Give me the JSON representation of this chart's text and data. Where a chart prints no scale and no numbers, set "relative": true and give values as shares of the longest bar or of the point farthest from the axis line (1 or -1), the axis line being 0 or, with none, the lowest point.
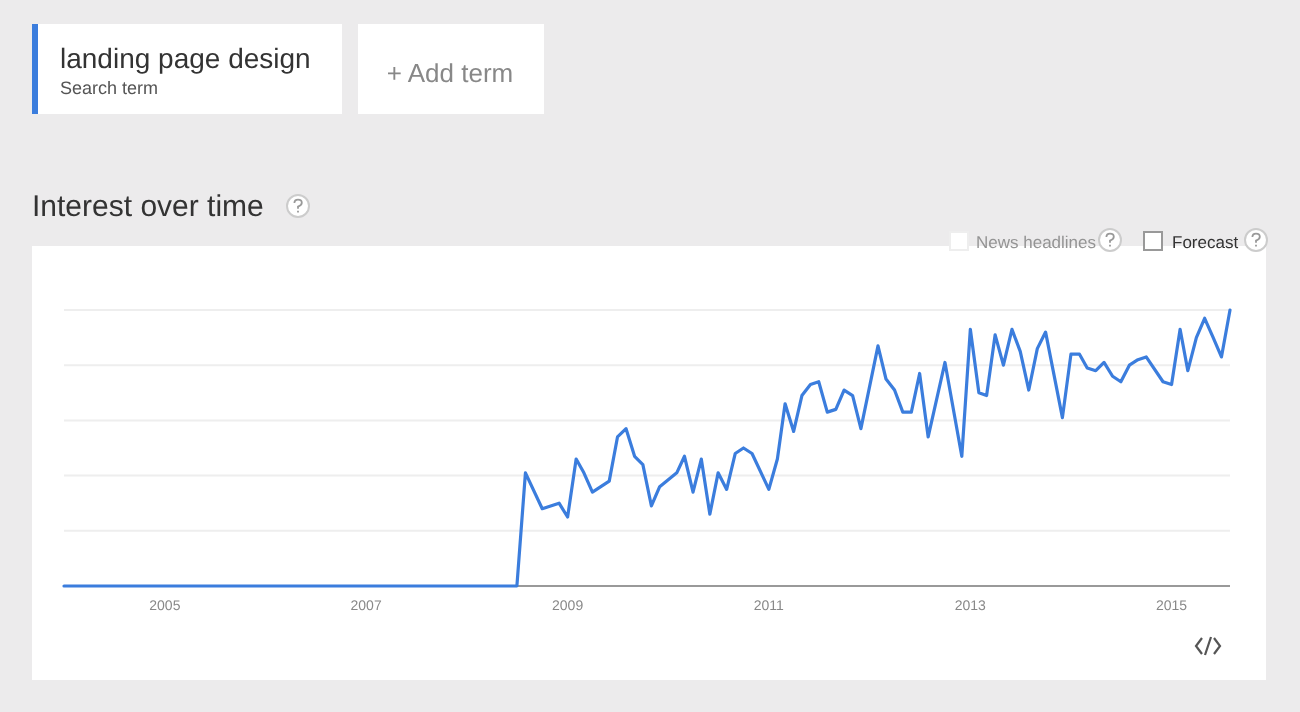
{
  "chart_data": {
    "type": "line",
    "title": "Interest over time",
    "legend_title": "Search term",
    "legend": "top left",
    "relative": true,
    "grid": "y",
    "annotations": [
      "+ Add term",
      "News headlines",
      "Forecast"
    ],
    "xlim": [
      "2004-01",
      "2015-08"
    ],
    "xticks": [
      "2005",
      "2007",
      "2009",
      "2011",
      "2013",
      "2015"
    ],
    "series": [
      {
        "name": "landing page design",
        "color": "#3b7ddd",
        "x": [
          "2004-01",
          "2008-07",
          "2008-08",
          "2008-10",
          "2008-12",
          "2009-01",
          "2009-02",
          "2009-03",
          "2009-04",
          "2009-06",
          "2009-07",
          "2009-08",
          "2009-09",
          "2009-10",
          "2009-11",
          "2009-12",
          "2010-02",
          "2010-03",
          "2010-04",
          "2010-05",
          "2010-06",
          "2010-07",
          "2010-08",
          "2010-09",
          "2010-10",
          "2010-11",
          "2011-01",
          "2011-02",
          "2011-03",
          "2011-04",
          "2011-05",
          "2011-06",
          "2011-07",
          "2011-08",
          "2011-09",
          "2011-10",
          "2011-11",
          "2011-12",
          "2012-02",
          "2012-03",
          "2012-04",
          "2012-05",
          "2012-06",
          "2012-07",
          "2012-08",
          "2012-10",
          "2012-12",
          "2013-01",
          "2013-02",
          "2013-03",
          "2013-04",
          "2013-05",
          "2013-06",
          "2013-07",
          "2013-08",
          "2013-09",
          "2013-10",
          "2013-12",
          "2014-01",
          "2014-02",
          "2014-03",
          "2014-04",
          "2014-05",
          "2014-06",
          "2014-07",
          "2014-08",
          "2014-09",
          "2014-10",
          "2014-12",
          "2015-01",
          "2015-02",
          "2015-03",
          "2015-04",
          "2015-05",
          "2015-06",
          "2015-07",
          "2015-08"
        ],
        "values": [
          0,
          0,
          0.41,
          0.28,
          0.3,
          0.25,
          0.46,
          0.41,
          0.34,
          0.38,
          0.54,
          0.57,
          0.47,
          0.44,
          0.29,
          0.36,
          0.41,
          0.47,
          0.34,
          0.46,
          0.26,
          0.41,
          0.35,
          0.48,
          0.5,
          0.48,
          0.35,
          0.46,
          0.66,
          0.56,
          0.69,
          0.73,
          0.74,
          0.63,
          0.64,
          0.71,
          0.69,
          0.57,
          0.87,
          0.75,
          0.71,
          0.63,
          0.63,
          0.77,
          0.54,
          0.81,
          0.47,
          0.93,
          0.7,
          0.69,
          0.91,
          0.8,
          0.93,
          0.85,
          0.71,
          0.86,
          0.92,
          0.61,
          0.84,
          0.84,
          0.79,
          0.78,
          0.81,
          0.76,
          0.74,
          0.8,
          0.82,
          0.83,
          0.74,
          0.73,
          0.93,
          0.78,
          0.9,
          0.97,
          0.9,
          0.83,
          1.0
        ]
      }
    ]
  }
}
